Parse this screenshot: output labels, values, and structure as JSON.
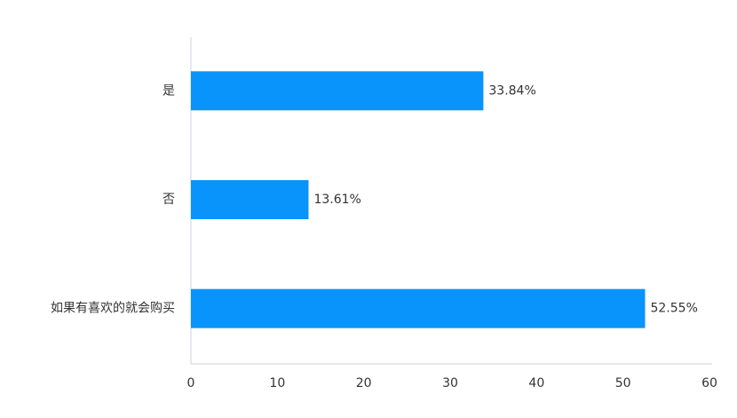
{
  "chart_data": {
    "type": "bar",
    "orientation": "horizontal",
    "categories": [
      "是",
      "否",
      "如果有喜欢的就会购买"
    ],
    "values": [
      33.84,
      13.61,
      52.55
    ],
    "value_labels": [
      "33.84%",
      "13.61%",
      "52.55%"
    ],
    "color": "#0894fb",
    "xlim": [
      0,
      60
    ],
    "xticks": [
      0,
      10,
      20,
      30,
      40,
      50,
      60
    ],
    "grid": false
  }
}
